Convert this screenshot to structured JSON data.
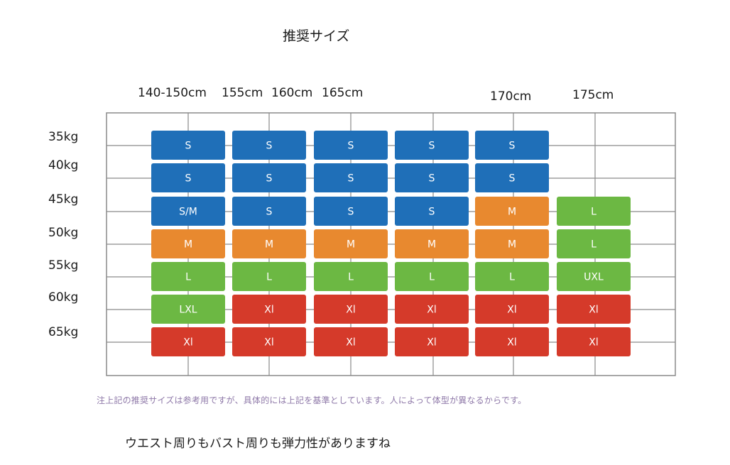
{
  "title": "推奨サイズ",
  "chart_data": {
    "type": "heatmap",
    "title": "推奨サイズ",
    "columns": [
      "140-150cm",
      "155cm",
      "160cm",
      "165cm",
      "170cm",
      "175cm"
    ],
    "rows": [
      "35kg",
      "40kg",
      "45kg",
      "50kg",
      "55kg",
      "60kg",
      "65kg"
    ],
    "cells": [
      [
        "S",
        "S",
        "S",
        "S",
        "S",
        null
      ],
      [
        "S",
        "S",
        "S",
        "S",
        "S",
        null
      ],
      [
        "S/M",
        "S",
        "S",
        "S",
        "M",
        "L"
      ],
      [
        "M",
        "M",
        "M",
        "M",
        "M",
        "L"
      ],
      [
        "L",
        "L",
        "L",
        "L",
        "L",
        "UXL"
      ],
      [
        "LXL",
        "Xl",
        "Xl",
        "Xl",
        "Xl",
        "Xl"
      ],
      [
        "Xl",
        "Xl",
        "Xl",
        "Xl",
        "Xl",
        "Xl"
      ]
    ],
    "colors": {
      "S": "#1f6fb8",
      "S/M": "#1f6fb8",
      "M": "#e8892f",
      "L": "#6cb843",
      "UXL": "#6cb843",
      "LXL": "#6cb843",
      "Xl": "#d53a2a"
    },
    "grid": true
  },
  "note": "注上記の推奨サイズは参考用ですが、具体的には上記を基準としています。人によって体型が異なるからです。",
  "subnote": "ウエスト周りもバスト周りも弾力性がありますね"
}
